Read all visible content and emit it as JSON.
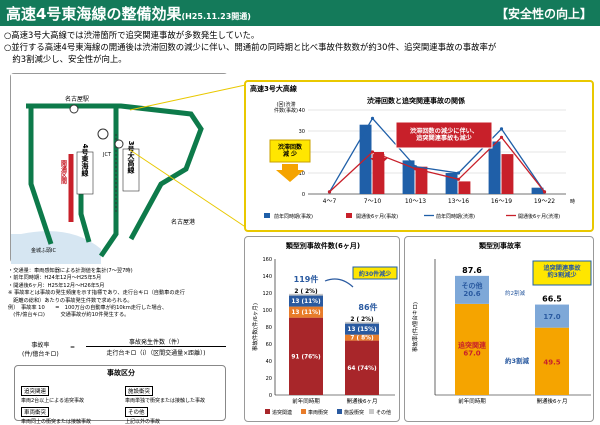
{
  "header": {
    "title": "高速4号東海線の整備効果",
    "title_sub": "(H25.11.23開通)",
    "tag": "【安全性の向上】"
  },
  "intro": [
    "○高速3号大高線では渋滞箇所で追突関連事故が多数発生していた。",
    "○並行する高速4号東海線の開通後は渋滞回数の減少に伴い、開通前の同時期と比べ事故件数数が約30件、追突関連事故の事故率が",
    "　約3割減少し、安全性が向上。"
  ],
  "map": {
    "labels": {
      "nagoya": "名古屋駅",
      "route4": "4号東海線",
      "route3": "3号大高線",
      "opening": "開通区間",
      "nagoya_port": "名古屋港",
      "kinjo": "金城ふ頭IC",
      "jct": "JCT"
    },
    "notes": [
      "・交通量：車両感知器による計測値を集計(7〜翌7時)",
      "・前年同時期：H24年12月〜H25年5月",
      "・開通後6ヶ月：H25年12月〜H26年5月",
      "※ 事故率とは事故の発生頻度を示す指標であり、走行台キロ（自動車の走行",
      "　距離の総和）あたりの事故発生件数で求められる。"
    ],
    "rate_example": [
      "例）　事故率 10　　=　100万台の自動車が約10km走行した場合、",
      "　(件/億台キロ)　　　交通事故が約10件発生する。"
    ],
    "formula": {
      "lhs": "事故率",
      "lhs_unit": "(件/億台キロ)",
      "eq": "=",
      "num": "事故発生件数（件）",
      "den": "走行台キロ（i）（区間交通量×距離）)"
    }
  },
  "legend_box": {
    "title": "事故区分",
    "items": [
      {
        "label": "追突関連",
        "desc": "車両2台以上による追突事故"
      },
      {
        "label": "施設衝突",
        "desc": "車両単独で衝突または接触した事故"
      },
      {
        "label": "車両衝突",
        "desc": "車両同士の衝突または接触事故"
      },
      {
        "label": "その他",
        "desc": "上記以外の事故"
      }
    ]
  },
  "top_panel": {
    "route_title": "高速3号大高線",
    "callout": "渋滞回数の減少に伴い、\n追突関連事故も減少",
    "congestion_label": "渋滞回数\n減 少"
  },
  "colors": {
    "prior": "#1f5fa8",
    "after": "#c8202a",
    "rear": "#a8262a",
    "vehicle": "#e87c2a",
    "facility": "#2a5aa0",
    "other": "#c8c8c8",
    "orange": "#f5a400",
    "blue2": "#7ea8d8",
    "green": "#0d7a4a"
  },
  "chart_data": [
    {
      "type": "bar",
      "title": "渋滞回数と追突関連事故の関係",
      "ylabel": "(回)渋滞\n件数(事故)",
      "categories": [
        "4〜7",
        "7〜10",
        "10〜13",
        "13〜16",
        "16〜19",
        "19〜22"
      ],
      "xunit": "時",
      "ylim": [
        0,
        40
      ],
      "yticks": [
        0,
        10,
        20,
        30,
        40
      ],
      "series": [
        {
          "name": "前年同時期(事故)",
          "kind": "bar",
          "values": [
            0,
            33,
            16,
            10,
            25,
            3
          ]
        },
        {
          "name": "開通後6ヶ月(事故)",
          "kind": "bar",
          "values": [
            0,
            19,
            13,
            6,
            19,
            0
          ]
        },
        {
          "name": "前年同時期(渋滞)",
          "kind": "line",
          "values": [
            1,
            36,
            13,
            10,
            31,
            1
          ]
        },
        {
          "name": "開通後6ヶ月(渋滞)",
          "kind": "line",
          "values": [
            1,
            20,
            12,
            7,
            27,
            1
          ]
        }
      ]
    },
    {
      "type": "bar",
      "title": "類型別事故件数(6ヶ月)",
      "ylabel": "事故件数(件/6ヶ月)",
      "categories": [
        "前年同時期",
        "開通後6ヶ月"
      ],
      "ylim": [
        0,
        160
      ],
      "yticks": [
        0,
        20,
        40,
        60,
        80,
        100,
        120,
        140,
        160
      ],
      "totals": [
        "119件",
        "86件"
      ],
      "reduction": "約30件減少",
      "series": [
        {
          "name": "追突関連",
          "values": [
            91,
            64
          ],
          "labels": [
            "91 (76%)",
            "64 (74%)"
          ]
        },
        {
          "name": "車両衝突",
          "values": [
            13,
            7
          ],
          "labels": [
            "13 (11%)",
            "7 ( 8%)"
          ]
        },
        {
          "name": "施設衝突",
          "values": [
            13,
            13
          ],
          "labels": [
            "13 (11%)",
            "13 (15%)"
          ]
        },
        {
          "name": "その他",
          "values": [
            2,
            2
          ],
          "labels": [
            "2 ( 2%)",
            "2 ( 2%)"
          ]
        }
      ]
    },
    {
      "type": "bar",
      "title": "類型別事故率",
      "ylabel": "事故率(件/億台キロ)",
      "categories": [
        "前年同時期",
        "開通後6ヶ月"
      ],
      "totals": [
        "87.6",
        "66.5"
      ],
      "callout": "追突関連事故\n約3割減少",
      "series": [
        {
          "name": "追突関連",
          "values": [
            67.0,
            49.5
          ],
          "label": "追突関連"
        },
        {
          "name": "その他",
          "values": [
            20.6,
            17.0
          ],
          "label": "その他"
        }
      ],
      "annotations": {
        "other_reduction": "約2割減",
        "rear_reduction": "約3割減"
      }
    }
  ],
  "bar_legend": [
    "追突関連",
    "車両衝突",
    "施設衝突",
    "その他"
  ]
}
